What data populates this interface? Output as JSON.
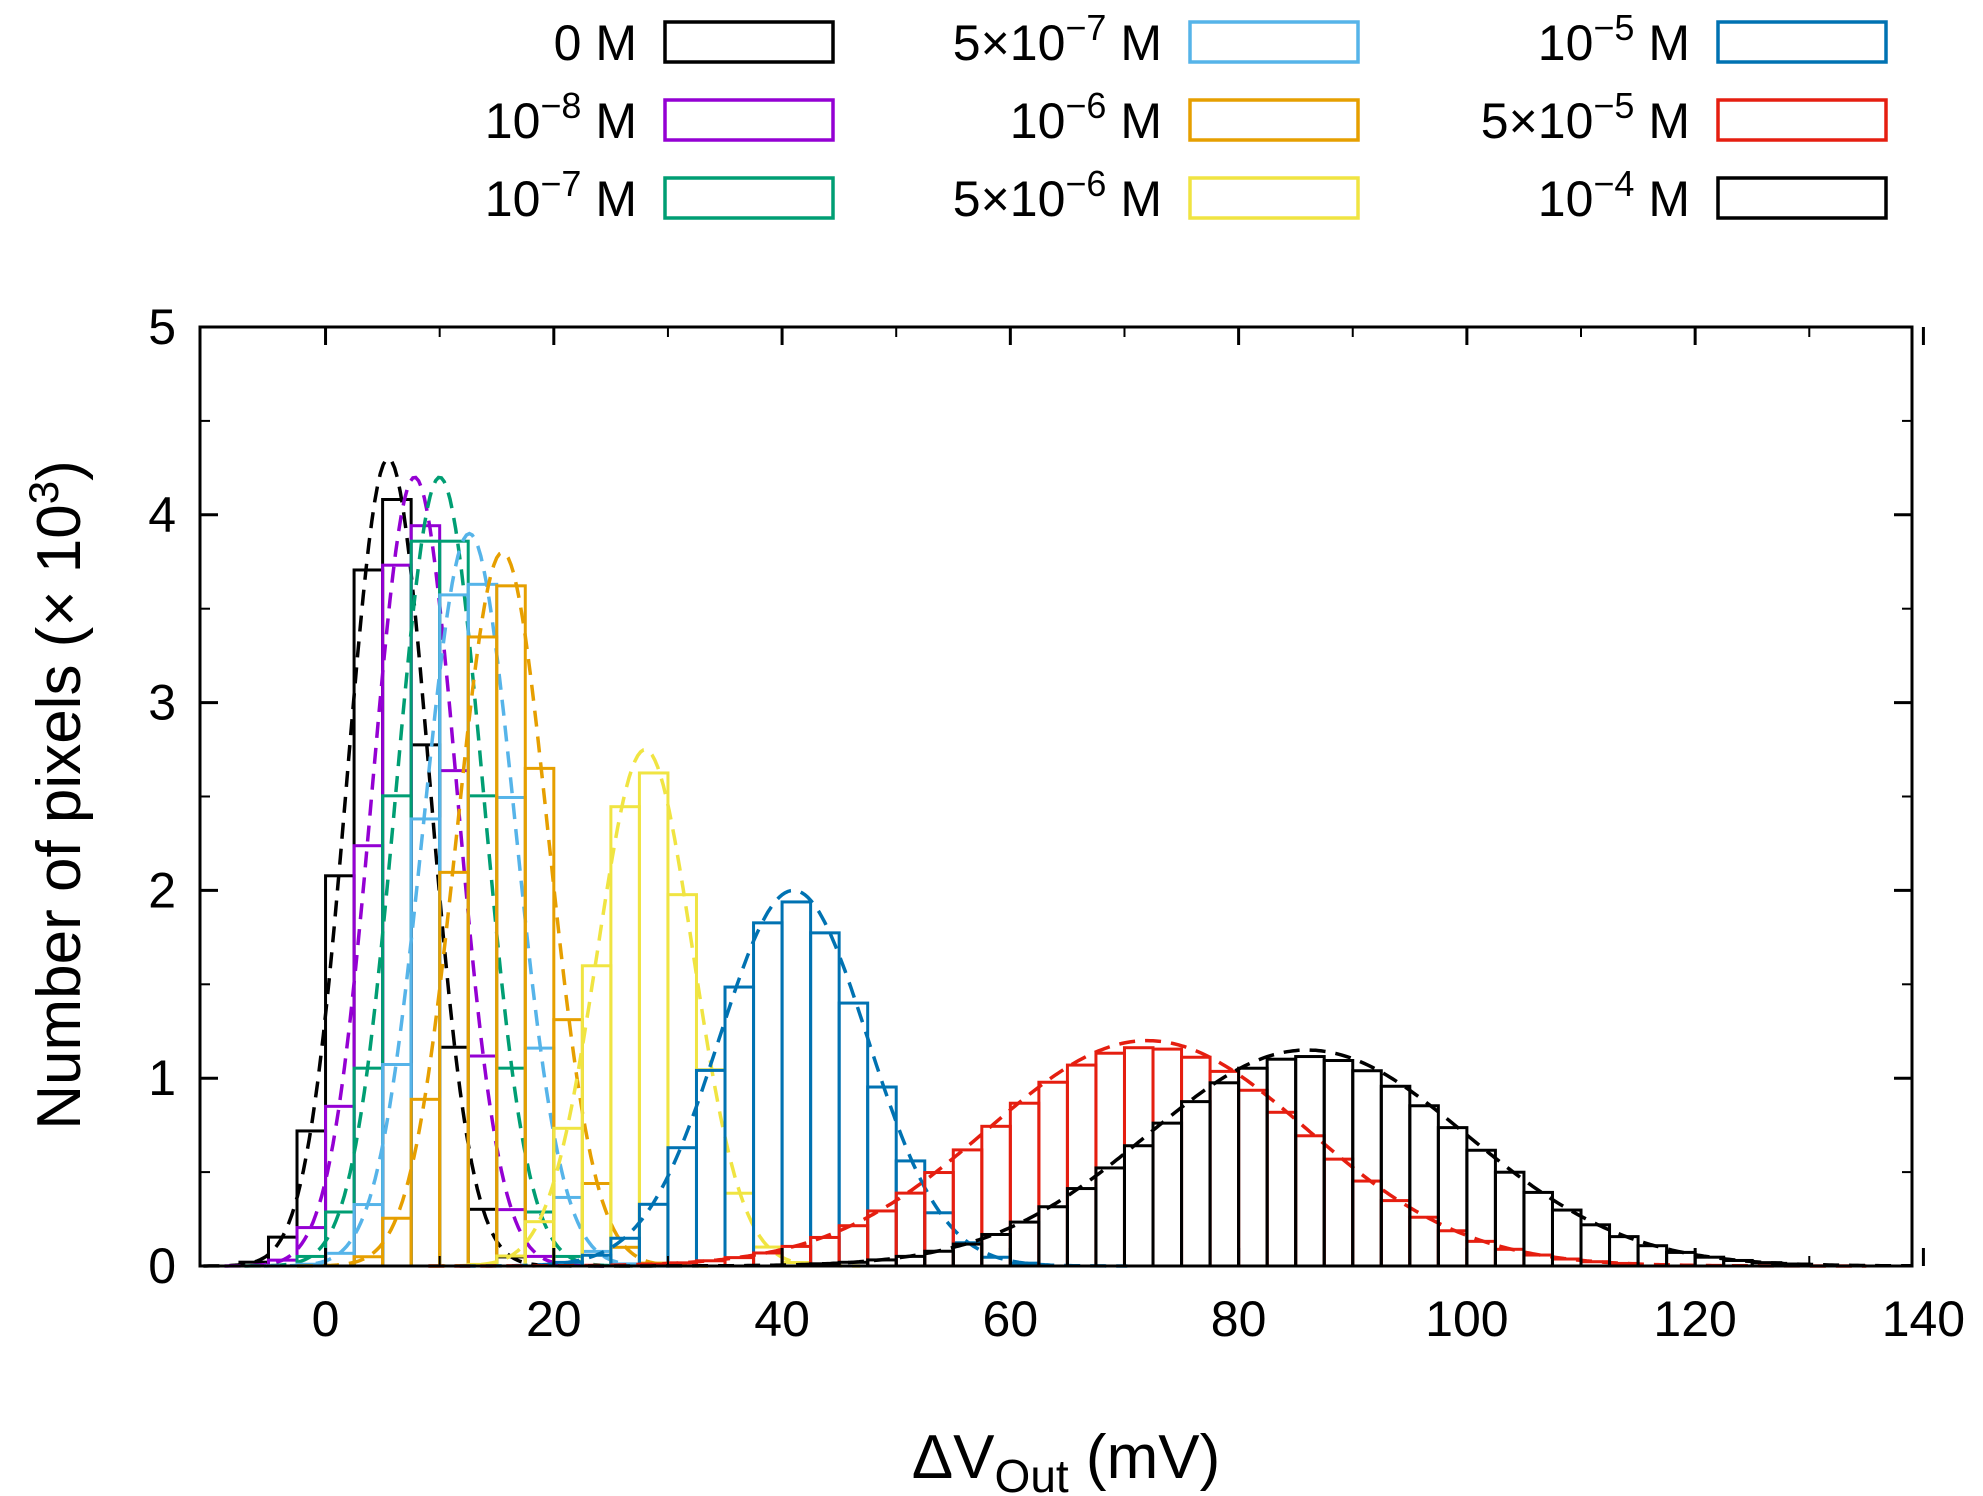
{
  "chart_data": {
    "type": "histogram",
    "xlabel": {
      "prefix": "ΔV",
      "sub": "Out",
      "suffix": " (mV)"
    },
    "ylabel": {
      "main": "Number of pixels (× 10",
      "sup": "3",
      "end": ")"
    },
    "xlim": [
      -11,
      139
    ],
    "ylim": [
      0,
      5
    ],
    "xticks": [
      0,
      20,
      40,
      60,
      80,
      100,
      120,
      140
    ],
    "yticks": [
      0,
      1,
      2,
      3,
      4,
      5
    ],
    "bin_width": 2.5,
    "legend_position": "top",
    "series": [
      {
        "name": "0 M",
        "legend": {
          "base": "0 M"
        },
        "color": "#000000",
        "mean": 5.5,
        "sd": 3.6,
        "peak": 4.3
      },
      {
        "name": "10^-8 M",
        "legend": {
          "base": "10",
          "exp": "−8",
          "unit": " M"
        },
        "color": "#9400d3",
        "mean": 7.8,
        "sd": 3.7,
        "peak": 4.2
      },
      {
        "name": "10^-7 M",
        "legend": {
          "base": "10",
          "exp": "−7",
          "unit": " M"
        },
        "color": "#009e73",
        "mean": 10.0,
        "sd": 3.8,
        "peak": 4.2
      },
      {
        "name": "5x10^-7 M",
        "legend": {
          "base": "5×10",
          "exp": "−7",
          "unit": " M"
        },
        "color": "#56b4e9",
        "mean": 12.6,
        "sd": 4.0,
        "peak": 3.9
      },
      {
        "name": "10^-6 M",
        "legend": {
          "base": "10",
          "exp": "−6",
          "unit": " M"
        },
        "color": "#e69f00",
        "mean": 15.5,
        "sd": 4.0,
        "peak": 3.8
      },
      {
        "name": "5x10^-6 M",
        "legend": {
          "base": "5×10",
          "exp": "−6",
          "unit": " M"
        },
        "color": "#f0e442",
        "mean": 28.0,
        "sd": 4.2,
        "peak": 2.75
      },
      {
        "name": "10^-5 M",
        "legend": {
          "base": "10",
          "exp": "−5",
          "unit": " M"
        },
        "color": "#0072b2",
        "mean": 41.0,
        "sd": 6.5,
        "peak": 2.0
      },
      {
        "name": "5x10^-5 M",
        "legend": {
          "base": "5×10",
          "exp": "−5",
          "unit": " M"
        },
        "color": "#e51e10",
        "mean": 72.0,
        "sd": 14.0,
        "peak": 1.2
      },
      {
        "name": "10^-4 M",
        "legend": {
          "base": "10",
          "exp": "−4",
          "unit": " M"
        },
        "color": "#000000",
        "mean": 86.0,
        "sd": 14.0,
        "peak": 1.15
      }
    ]
  }
}
